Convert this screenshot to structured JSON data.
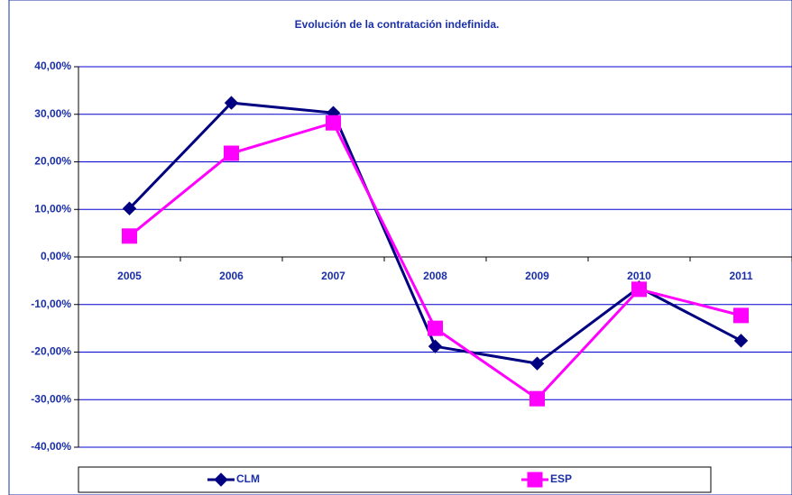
{
  "chart_data": {
    "type": "line",
    "title": "Evolución de la contratación indefinida.",
    "categories": [
      "2005",
      "2006",
      "2007",
      "2008",
      "2009",
      "2010",
      "2011"
    ],
    "series": [
      {
        "name": "CLM",
        "color": "#000080",
        "marker": "diamond",
        "values": [
          10.2,
          32.4,
          30.3,
          -18.8,
          -22.4,
          -6.4,
          -17.6
        ]
      },
      {
        "name": "ESP",
        "color": "#ff00ff",
        "marker": "square",
        "values": [
          4.4,
          21.8,
          28.2,
          -15.0,
          -29.8,
          -6.8,
          -12.3
        ]
      }
    ],
    "ylim": [
      -40,
      40
    ],
    "yticks": [
      {
        "value": -40,
        "label": "-40,00%"
      },
      {
        "value": -30,
        "label": "-30,00%"
      },
      {
        "value": -20,
        "label": "-20,00%"
      },
      {
        "value": -10,
        "label": "-10,00%"
      },
      {
        "value": 0,
        "label": "0,00%"
      },
      {
        "value": 10,
        "label": "10,00%"
      },
      {
        "value": 20,
        "label": "20,00%"
      },
      {
        "value": 30,
        "label": "30,00%"
      },
      {
        "value": 40,
        "label": "40,00%"
      }
    ],
    "grid": true,
    "grid_color": "#0000cc",
    "legend": "bottom"
  }
}
